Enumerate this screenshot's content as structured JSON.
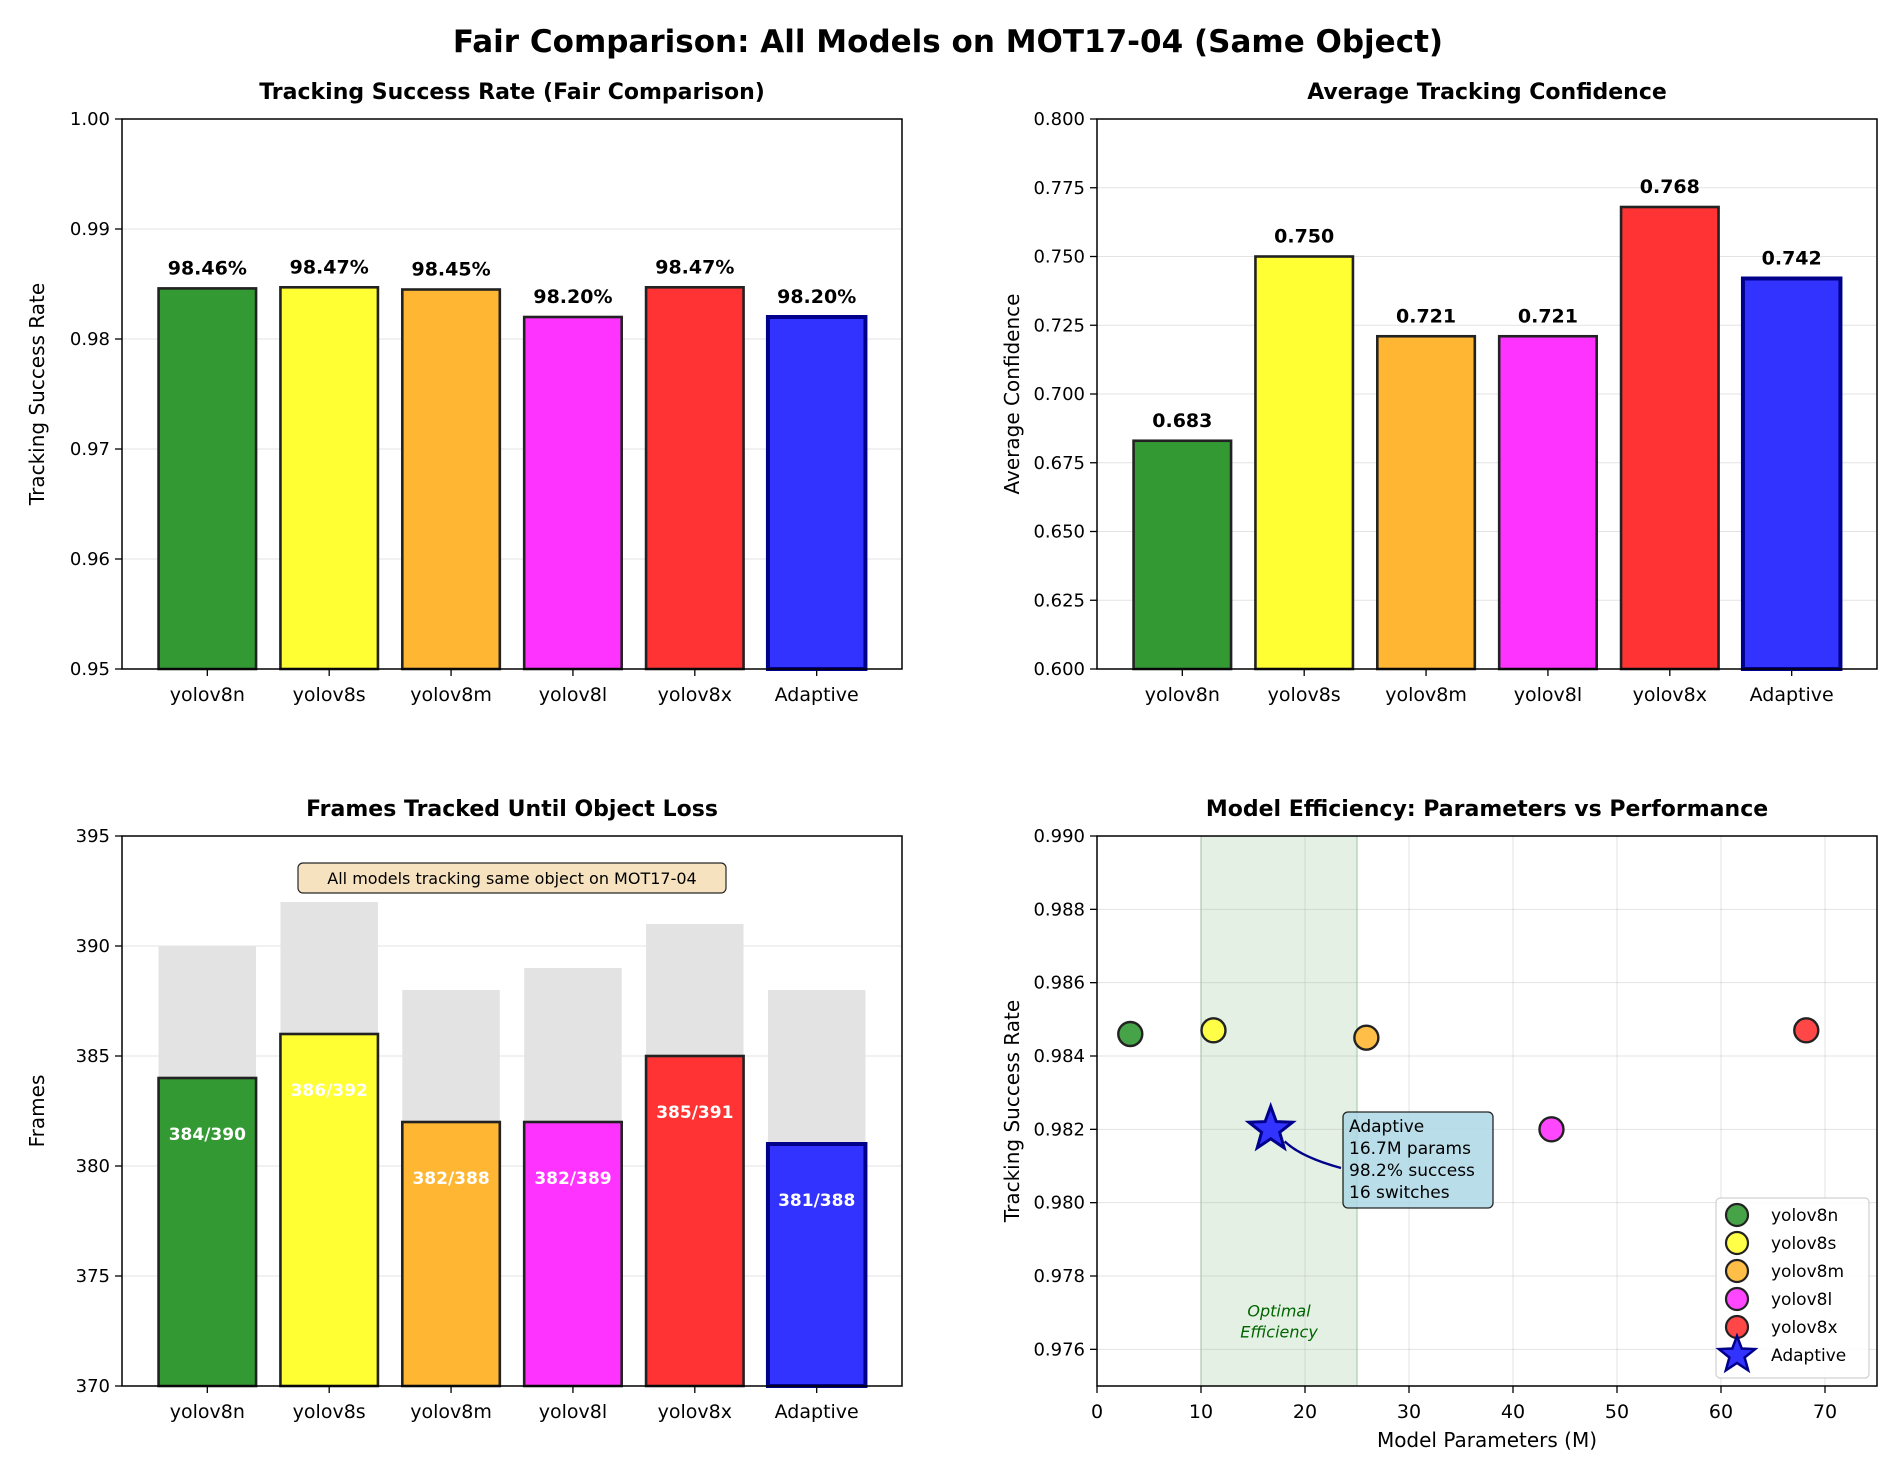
{
  "figure": {
    "title": "Fair Comparison: All Models on MOT17-04 (Same Object)"
  },
  "colors": {
    "yolov8n": "#339933",
    "yolov8s": "#ffff33",
    "yolov8m": "#ffb733",
    "yolov8l": "#ff33ff",
    "yolov8x": "#ff3333",
    "Adaptive": "#3333ff",
    "total_bar": "#e3e3e3",
    "optimal_band": "#e3f0e3",
    "annotation_box": "#add8e6",
    "note_box": "#f5deb3"
  },
  "chart_data": [
    {
      "id": "success",
      "type": "bar",
      "title": "Tracking Success Rate (Fair Comparison)",
      "xlabel": "",
      "ylabel": "Tracking Success Rate",
      "categories": [
        "yolov8n",
        "yolov8s",
        "yolov8m",
        "yolov8l",
        "yolov8x",
        "Adaptive"
      ],
      "values": [
        0.9846,
        0.9847,
        0.9845,
        0.982,
        0.9847,
        0.982
      ],
      "labels": [
        "98.46%",
        "98.47%",
        "98.45%",
        "98.20%",
        "98.47%",
        "98.20%"
      ],
      "ylim": [
        0.95,
        1.0
      ],
      "yticks": [
        0.95,
        0.96,
        0.97,
        0.98,
        0.99,
        1.0
      ],
      "ytick_labels": [
        "0.95",
        "0.96",
        "0.97",
        "0.98",
        "0.99",
        "1.00"
      ],
      "grid": "y"
    },
    {
      "id": "confidence",
      "type": "bar",
      "title": "Average Tracking Confidence",
      "xlabel": "",
      "ylabel": "Average Confidence",
      "categories": [
        "yolov8n",
        "yolov8s",
        "yolov8m",
        "yolov8l",
        "yolov8x",
        "Adaptive"
      ],
      "values": [
        0.683,
        0.75,
        0.721,
        0.721,
        0.768,
        0.742
      ],
      "labels": [
        "0.683",
        "0.750",
        "0.721",
        "0.721",
        "0.768",
        "0.742"
      ],
      "ylim": [
        0.6,
        0.8
      ],
      "yticks": [
        0.6,
        0.625,
        0.65,
        0.675,
        0.7,
        0.725,
        0.75,
        0.775,
        0.8
      ],
      "ytick_labels": [
        "0.600",
        "0.625",
        "0.650",
        "0.675",
        "0.700",
        "0.725",
        "0.750",
        "0.775",
        "0.800"
      ],
      "grid": "y"
    },
    {
      "id": "frames",
      "type": "bar",
      "title": "Frames Tracked Until Object Loss",
      "xlabel": "",
      "ylabel": "Frames",
      "categories": [
        "yolov8n",
        "yolov8s",
        "yolov8m",
        "yolov8l",
        "yolov8x",
        "Adaptive"
      ],
      "series": [
        {
          "name": "",
          "values": [
            390,
            392,
            388,
            389,
            391,
            388
          ]
        },
        {
          "name": "",
          "values": [
            384,
            386,
            382,
            382,
            385,
            381
          ]
        }
      ],
      "labels": [
        "384/390",
        "386/392",
        "382/388",
        "382/389",
        "385/391",
        "381/388"
      ],
      "annotation": "All models tracking same object on MOT17-04",
      "ylim": [
        370,
        395
      ],
      "yticks": [
        370,
        375,
        380,
        385,
        390,
        395
      ],
      "ytick_labels": [
        "370",
        "375",
        "380",
        "385",
        "390",
        "395"
      ],
      "grid": "y"
    },
    {
      "id": "efficiency",
      "type": "scatter",
      "title": "Model Efficiency: Parameters vs Performance",
      "xlabel": "Model Parameters (M)",
      "ylabel": "Tracking Success Rate",
      "points": [
        {
          "name": "yolov8n",
          "x": 3.2,
          "y": 0.9846,
          "marker": "circle"
        },
        {
          "name": "yolov8s",
          "x": 11.2,
          "y": 0.9847,
          "marker": "circle"
        },
        {
          "name": "yolov8m",
          "x": 25.9,
          "y": 0.9845,
          "marker": "circle"
        },
        {
          "name": "yolov8l",
          "x": 43.7,
          "y": 0.982,
          "marker": "circle"
        },
        {
          "name": "yolov8x",
          "x": 68.2,
          "y": 0.9847,
          "marker": "circle"
        },
        {
          "name": "Adaptive",
          "x": 16.7,
          "y": 0.982,
          "marker": "star"
        }
      ],
      "shaded_region": {
        "x": [
          10,
          25
        ],
        "label_lines": [
          "Optimal",
          "Efficiency"
        ]
      },
      "annotation_lines": [
        "Adaptive",
        "16.7M params",
        "98.2% success",
        "16 switches"
      ],
      "xlim": [
        0,
        75
      ],
      "ylim": [
        0.975,
        0.99
      ],
      "xticks": [
        0,
        10,
        20,
        30,
        40,
        50,
        60,
        70
      ],
      "xtick_labels": [
        "0",
        "10",
        "20",
        "30",
        "40",
        "50",
        "60",
        "70"
      ],
      "yticks": [
        0.976,
        0.978,
        0.98,
        0.982,
        0.984,
        0.986,
        0.988,
        0.99
      ],
      "ytick_labels": [
        "0.976",
        "0.978",
        "0.980",
        "0.982",
        "0.984",
        "0.986",
        "0.988",
        "0.990"
      ],
      "grid": "both",
      "legend": "lower-right"
    }
  ]
}
